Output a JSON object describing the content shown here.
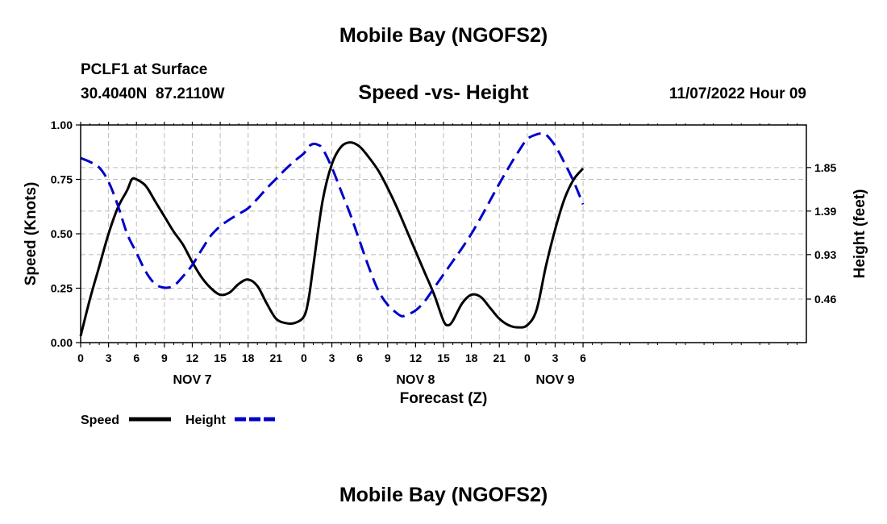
{
  "header": {
    "title": "Mobile Bay (NGOFS2)",
    "station": "PCLF1 at Surface",
    "coords": "30.4040N  87.2110W",
    "subtitle": "Speed -vs- Height",
    "timestamp": "11/07/2022 Hour 09"
  },
  "footer": {
    "title": "Mobile Bay (NGOFS2)"
  },
  "chart_data": {
    "type": "line",
    "xlabel": "Forecast (Z)",
    "ylabel_left": "Speed (Knots)",
    "ylabel_right": "Height (feet)",
    "x_unit": "hours from Nov 7 00Z",
    "xlim": [
      -24,
      54
    ],
    "x_ticks": [
      {
        "x": -24,
        "label": "0"
      },
      {
        "x": -21,
        "label": "3"
      },
      {
        "x": -18,
        "label": "6"
      },
      {
        "x": -15,
        "label": "9"
      },
      {
        "x": -12,
        "label": "12"
      },
      {
        "x": -9,
        "label": "15"
      },
      {
        "x": -6,
        "label": "18"
      },
      {
        "x": -3,
        "label": "21"
      },
      {
        "x": 0,
        "label": "0"
      },
      {
        "x": 3,
        "label": "3"
      },
      {
        "x": 6,
        "label": "6"
      },
      {
        "x": 9,
        "label": "9"
      },
      {
        "x": 12,
        "label": "12"
      },
      {
        "x": 15,
        "label": "15"
      },
      {
        "x": 18,
        "label": "18"
      },
      {
        "x": 21,
        "label": "21"
      },
      {
        "x": 24,
        "label": "0"
      },
      {
        "x": 27,
        "label": "3"
      },
      {
        "x": 30,
        "label": "6"
      }
    ],
    "date_labels": [
      {
        "x": -12,
        "label": "NOV 7"
      },
      {
        "x": 12,
        "label": "NOV 8"
      },
      {
        "x": 27,
        "label": "NOV 9"
      }
    ],
    "ylim_left": [
      0,
      1.0
    ],
    "y_ticks_left": [
      "0.00",
      "0.25",
      "0.50",
      "0.75",
      "1.00"
    ],
    "ylim_right": [
      0.0,
      2.3
    ],
    "y_ticks_right": [
      "0.46",
      "0.93",
      "1.39",
      "1.85"
    ],
    "grid": true,
    "legend_position": "bottom-left",
    "series": [
      {
        "name": "Speed",
        "axis": "left",
        "color": "#000000",
        "dash": "solid",
        "points": [
          [
            -24,
            0.03
          ],
          [
            -23,
            0.2
          ],
          [
            -22,
            0.35
          ],
          [
            -21,
            0.5
          ],
          [
            -20,
            0.62
          ],
          [
            -19,
            0.7
          ],
          [
            -18.5,
            0.75
          ],
          [
            -18,
            0.75
          ],
          [
            -17,
            0.72
          ],
          [
            -16,
            0.65
          ],
          [
            -15,
            0.58
          ],
          [
            -14,
            0.51
          ],
          [
            -13,
            0.45
          ],
          [
            -12,
            0.37
          ],
          [
            -11,
            0.3
          ],
          [
            -10,
            0.25
          ],
          [
            -9,
            0.22
          ],
          [
            -8,
            0.23
          ],
          [
            -7,
            0.27
          ],
          [
            -6,
            0.29
          ],
          [
            -5,
            0.26
          ],
          [
            -4,
            0.18
          ],
          [
            -3,
            0.11
          ],
          [
            -2,
            0.09
          ],
          [
            -1,
            0.09
          ],
          [
            0,
            0.12
          ],
          [
            0.5,
            0.2
          ],
          [
            1,
            0.35
          ],
          [
            2,
            0.65
          ],
          [
            3,
            0.82
          ],
          [
            4,
            0.9
          ],
          [
            5,
            0.92
          ],
          [
            6,
            0.9
          ],
          [
            7,
            0.85
          ],
          [
            8,
            0.79
          ],
          [
            9,
            0.71
          ],
          [
            10,
            0.62
          ],
          [
            11,
            0.52
          ],
          [
            12,
            0.42
          ],
          [
            13,
            0.32
          ],
          [
            14,
            0.22
          ],
          [
            15,
            0.1
          ],
          [
            15.5,
            0.08
          ],
          [
            16,
            0.1
          ],
          [
            17,
            0.18
          ],
          [
            18,
            0.22
          ],
          [
            19,
            0.21
          ],
          [
            20,
            0.16
          ],
          [
            21,
            0.11
          ],
          [
            22,
            0.08
          ],
          [
            23,
            0.07
          ],
          [
            24,
            0.08
          ],
          [
            25,
            0.15
          ],
          [
            26,
            0.35
          ],
          [
            27,
            0.52
          ],
          [
            28,
            0.66
          ],
          [
            29,
            0.75
          ],
          [
            30,
            0.8
          ]
        ]
      },
      {
        "name": "Height",
        "axis": "right",
        "color": "#0000cc",
        "dash": "dashed",
        "points": [
          [
            -24,
            1.95
          ],
          [
            -23,
            1.91
          ],
          [
            -22,
            1.85
          ],
          [
            -21,
            1.7
          ],
          [
            -20,
            1.45
          ],
          [
            -19,
            1.15
          ],
          [
            -18,
            0.95
          ],
          [
            -17,
            0.75
          ],
          [
            -16,
            0.62
          ],
          [
            -15,
            0.58
          ],
          [
            -14,
            0.6
          ],
          [
            -13,
            0.7
          ],
          [
            -12,
            0.82
          ],
          [
            -11,
            0.98
          ],
          [
            -10,
            1.13
          ],
          [
            -9,
            1.23
          ],
          [
            -8,
            1.3
          ],
          [
            -7,
            1.36
          ],
          [
            -6,
            1.42
          ],
          [
            -5,
            1.52
          ],
          [
            -4,
            1.63
          ],
          [
            -3,
            1.73
          ],
          [
            -2,
            1.83
          ],
          [
            -1,
            1.92
          ],
          [
            0,
            2.0
          ],
          [
            0.5,
            2.07
          ],
          [
            1,
            2.1
          ],
          [
            1.5,
            2.09
          ],
          [
            2,
            2.05
          ],
          [
            3,
            1.85
          ],
          [
            4,
            1.6
          ],
          [
            5,
            1.35
          ],
          [
            6,
            1.07
          ],
          [
            7,
            0.79
          ],
          [
            8,
            0.55
          ],
          [
            9,
            0.4
          ],
          [
            10,
            0.31
          ],
          [
            10.5,
            0.28
          ],
          [
            11,
            0.29
          ],
          [
            12,
            0.34
          ],
          [
            13,
            0.44
          ],
          [
            14,
            0.58
          ],
          [
            15,
            0.72
          ],
          [
            16,
            0.86
          ],
          [
            17,
            1.0
          ],
          [
            18,
            1.15
          ],
          [
            19,
            1.32
          ],
          [
            20,
            1.5
          ],
          [
            21,
            1.68
          ],
          [
            22,
            1.85
          ],
          [
            23,
            2.01
          ],
          [
            24,
            2.15
          ],
          [
            25,
            2.2
          ],
          [
            25.5,
            2.21
          ],
          [
            26,
            2.2
          ],
          [
            27,
            2.08
          ],
          [
            28,
            1.9
          ],
          [
            29,
            1.7
          ],
          [
            30,
            1.46
          ]
        ]
      }
    ]
  }
}
